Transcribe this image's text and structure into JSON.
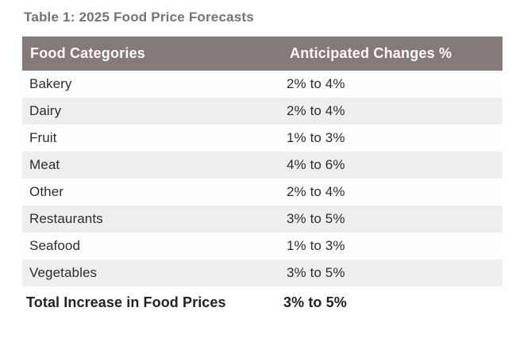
{
  "page": {
    "title": "Table 1: 2025 Food Price Forecasts"
  },
  "table": {
    "headers": {
      "category": "Food Categories",
      "change": "Anticipated Changes %"
    },
    "rows": [
      {
        "category": "Bakery",
        "change": "2% to 4%"
      },
      {
        "category": "Dairy",
        "change": "2% to 4%"
      },
      {
        "category": "Fruit",
        "change": "1% to 3%"
      },
      {
        "category": "Meat",
        "change": "4% to 6%"
      },
      {
        "category": "Other",
        "change": "2% to 4%"
      },
      {
        "category": "Restaurants",
        "change": "3% to 5%"
      },
      {
        "category": "Seafood",
        "change": "1% to 3%"
      },
      {
        "category": "Vegetables",
        "change": "3% to 5%"
      }
    ],
    "total": {
      "label": "Total Increase in Food Prices",
      "value": "3% to 5%"
    }
  },
  "colors": {
    "title_text": "#7b716e",
    "header_bg": "#847a78",
    "header_text": "#fbfafa",
    "row_alt_bg": "#efeeee",
    "body_text": "#2e2c2b",
    "total_text": "#252221"
  },
  "chart_data": {
    "type": "table",
    "title": "Table 1: 2025 Food Price Forecasts",
    "columns": [
      "Food Categories",
      "Anticipated Changes %"
    ],
    "rows": [
      [
        "Bakery",
        "2% to 4%"
      ],
      [
        "Dairy",
        "2% to 4%"
      ],
      [
        "Fruit",
        "1% to 3%"
      ],
      [
        "Meat",
        "4% to 6%"
      ],
      [
        "Other",
        "2% to 4%"
      ],
      [
        "Restaurants",
        "3% to 5%"
      ],
      [
        "Seafood",
        "1% to 3%"
      ],
      [
        "Vegetables",
        "3% to 5%"
      ]
    ],
    "footer": [
      "Total Increase in Food Prices",
      "3% to 5%"
    ]
  }
}
